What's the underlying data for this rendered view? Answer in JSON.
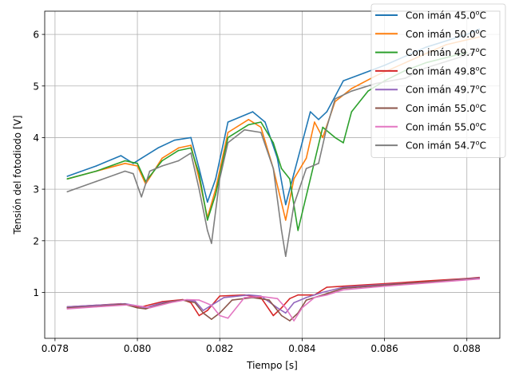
{
  "chart_data": {
    "type": "line",
    "title": "",
    "xlabel": "Tiempo [s]",
    "ylabel": "Tensión del fotodiodo [V]",
    "xlim": [
      0.07775,
      0.0888
    ],
    "ylim": [
      0.11,
      6.45
    ],
    "xticks": [
      0.078,
      0.08,
      0.082,
      0.084,
      0.086,
      0.088
    ],
    "xtick_labels": [
      "0.078",
      "0.080",
      "0.082",
      "0.084",
      "0.086",
      "0.088"
    ],
    "yticks": [
      1,
      2,
      3,
      4,
      5,
      6
    ],
    "ytick_labels": [
      "1",
      "2",
      "3",
      "4",
      "5",
      "6"
    ],
    "grid": true,
    "legend_position": "top-right",
    "series": [
      {
        "name": "Con imán 45.0",
        "label_prefix": "Con imán ",
        "label_value": "45.0",
        "label_unit_sup": "o",
        "label_unit": "C",
        "color": "#1f77b4",
        "x": [
          0.0783,
          0.079,
          0.0796,
          0.0799,
          0.0801,
          0.0805,
          0.0809,
          0.0813,
          0.0815,
          0.0817,
          0.0819,
          0.0822,
          0.0828,
          0.0831,
          0.0834,
          0.0836,
          0.0838,
          0.084,
          0.0842,
          0.0844,
          0.0846,
          0.0848,
          0.085,
          0.0855,
          0.086,
          0.087,
          0.088,
          0.0883
        ],
        "y": [
          3.25,
          3.45,
          3.65,
          3.5,
          3.6,
          3.8,
          3.95,
          4.0,
          3.4,
          2.75,
          3.2,
          4.3,
          4.5,
          4.3,
          3.6,
          2.7,
          3.3,
          3.9,
          4.5,
          4.35,
          4.5,
          4.8,
          5.1,
          5.25,
          5.4,
          5.75,
          6.0,
          6.1
        ]
      },
      {
        "name": "Con imán 50.0",
        "label_prefix": "Con imán ",
        "label_value": "50.0",
        "label_unit_sup": "o",
        "label_unit": "C",
        "color": "#ff7f0e",
        "x": [
          0.0783,
          0.079,
          0.0797,
          0.08,
          0.0802,
          0.0806,
          0.081,
          0.0813,
          0.0815,
          0.0817,
          0.0819,
          0.0822,
          0.0827,
          0.083,
          0.0833,
          0.0836,
          0.0838,
          0.0841,
          0.0843,
          0.0845,
          0.0848,
          0.0852,
          0.0858,
          0.0865,
          0.0875,
          0.0883
        ],
        "y": [
          3.2,
          3.35,
          3.5,
          3.45,
          3.1,
          3.6,
          3.8,
          3.85,
          3.2,
          2.45,
          3.0,
          4.1,
          4.35,
          4.2,
          3.4,
          2.4,
          3.2,
          3.6,
          4.3,
          4.0,
          4.7,
          4.95,
          5.2,
          5.45,
          5.8,
          5.95
        ]
      },
      {
        "name": "Con imán 49.7",
        "label_prefix": "Con imán ",
        "label_value": "49.7",
        "label_unit_sup": "o",
        "label_unit": "C",
        "color": "#2ca02c",
        "x": [
          0.0783,
          0.079,
          0.0797,
          0.08,
          0.0802,
          0.0806,
          0.081,
          0.0813,
          0.0815,
          0.0817,
          0.0819,
          0.0822,
          0.0827,
          0.083,
          0.0833,
          0.0835,
          0.0837,
          0.0839,
          0.0842,
          0.0845,
          0.0848,
          0.085,
          0.0852,
          0.0856,
          0.086,
          0.0865,
          0.087,
          0.088
        ],
        "y": [
          3.2,
          3.35,
          3.55,
          3.5,
          3.15,
          3.55,
          3.75,
          3.8,
          3.3,
          2.4,
          2.9,
          4.0,
          4.25,
          4.3,
          3.9,
          3.4,
          3.2,
          2.2,
          3.2,
          4.2,
          4.0,
          3.9,
          4.5,
          4.9,
          5.1,
          5.3,
          5.45,
          5.65
        ]
      },
      {
        "name": "Con imán 49.8",
        "label_prefix": "Con imán ",
        "label_value": "49.8",
        "label_unit_sup": "o",
        "label_unit": "C",
        "color": "#d62728",
        "x": [
          0.0783,
          0.079,
          0.0796,
          0.0799,
          0.0801,
          0.0806,
          0.0811,
          0.0813,
          0.0815,
          0.0817,
          0.082,
          0.0826,
          0.083,
          0.0833,
          0.0835,
          0.0837,
          0.0839,
          0.0843,
          0.0846,
          0.085,
          0.086,
          0.087,
          0.088,
          0.0883
        ],
        "y": [
          0.72,
          0.75,
          0.78,
          0.73,
          0.72,
          0.82,
          0.86,
          0.8,
          0.55,
          0.65,
          0.93,
          0.95,
          0.9,
          0.55,
          0.7,
          0.88,
          0.95,
          0.95,
          1.1,
          1.12,
          1.17,
          1.22,
          1.27,
          1.29
        ]
      },
      {
        "name": "Con imán 49.7",
        "label_prefix": "Con imán ",
        "label_value": "49.7",
        "label_unit_sup": "o",
        "label_unit": "C",
        "color": "#9467bd",
        "x": [
          0.0783,
          0.079,
          0.0797,
          0.08,
          0.0802,
          0.0806,
          0.0811,
          0.0814,
          0.0816,
          0.0818,
          0.0821,
          0.0827,
          0.083,
          0.0834,
          0.0836,
          0.0838,
          0.0841,
          0.0845,
          0.085,
          0.086,
          0.087,
          0.0883
        ],
        "y": [
          0.72,
          0.75,
          0.78,
          0.74,
          0.7,
          0.8,
          0.85,
          0.83,
          0.65,
          0.75,
          0.9,
          0.95,
          0.93,
          0.7,
          0.6,
          0.8,
          0.9,
          1.0,
          1.1,
          1.15,
          1.2,
          1.28
        ]
      },
      {
        "name": "Con imán 55.0",
        "label_prefix": "Con imán ",
        "label_value": "55.0",
        "label_unit_sup": "o",
        "label_unit": "C",
        "color": "#8c564b",
        "x": [
          0.0783,
          0.079,
          0.0797,
          0.08,
          0.0802,
          0.0807,
          0.0811,
          0.0814,
          0.0816,
          0.0818,
          0.082,
          0.0823,
          0.0828,
          0.0832,
          0.0835,
          0.0837,
          0.0839,
          0.0841,
          0.0845,
          0.085,
          0.086,
          0.087,
          0.0883
        ],
        "y": [
          0.7,
          0.73,
          0.77,
          0.7,
          0.68,
          0.8,
          0.85,
          0.8,
          0.6,
          0.48,
          0.6,
          0.85,
          0.9,
          0.85,
          0.55,
          0.45,
          0.6,
          0.85,
          0.95,
          1.08,
          1.14,
          1.2,
          1.27
        ]
      },
      {
        "name": "Con imán 55.0",
        "label_prefix": "Con imán ",
        "label_value": "55.0",
        "label_unit_sup": "o",
        "label_unit": "C",
        "color": "#e377c2",
        "x": [
          0.0783,
          0.079,
          0.0798,
          0.0801,
          0.0803,
          0.0808,
          0.0812,
          0.0815,
          0.0818,
          0.082,
          0.0822,
          0.0826,
          0.083,
          0.0834,
          0.0836,
          0.0838,
          0.084,
          0.0843,
          0.0846,
          0.085,
          0.086,
          0.087,
          0.0883
        ],
        "y": [
          0.68,
          0.72,
          0.76,
          0.73,
          0.7,
          0.8,
          0.86,
          0.85,
          0.75,
          0.55,
          0.5,
          0.9,
          0.92,
          0.88,
          0.7,
          0.45,
          0.7,
          0.9,
          0.95,
          1.05,
          1.12,
          1.18,
          1.26
        ]
      },
      {
        "name": "Con imán 54.7",
        "label_prefix": "Con imán ",
        "label_value": "54.7",
        "label_unit_sup": "o",
        "label_unit": "C",
        "color": "#7f7f7f",
        "x": [
          0.0783,
          0.079,
          0.0797,
          0.0799,
          0.0801,
          0.0803,
          0.0806,
          0.081,
          0.0813,
          0.0815,
          0.0817,
          0.0818,
          0.082,
          0.0822,
          0.0826,
          0.083,
          0.0833,
          0.0835,
          0.0836,
          0.0838,
          0.0841,
          0.0844,
          0.0846,
          0.0848,
          0.0852,
          0.0858,
          0.0865,
          0.087,
          0.088,
          0.0883
        ],
        "y": [
          2.95,
          3.15,
          3.35,
          3.3,
          2.85,
          3.35,
          3.45,
          3.55,
          3.7,
          3.0,
          2.2,
          1.95,
          3.2,
          3.9,
          4.15,
          4.1,
          3.4,
          2.2,
          1.7,
          2.7,
          3.4,
          3.5,
          4.2,
          4.75,
          4.9,
          5.05,
          5.15,
          5.35,
          5.6,
          5.7
        ]
      }
    ]
  }
}
